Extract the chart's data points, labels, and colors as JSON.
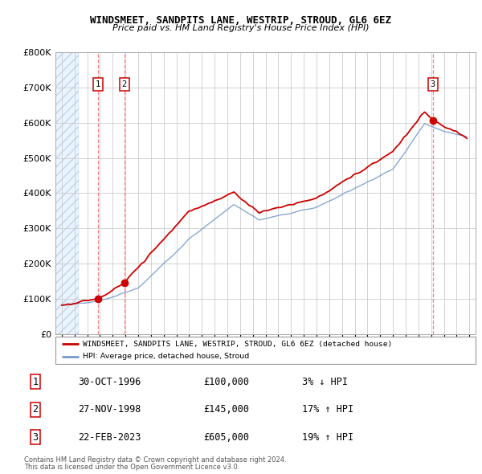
{
  "title": "WINDSMEET, SANDPITS LANE, WESTRIP, STROUD, GL6 6EZ",
  "subtitle": "Price paid vs. HM Land Registry's House Price Index (HPI)",
  "transactions": [
    {
      "num": 1,
      "date": "30-OCT-1996",
      "year": 1996.83,
      "price": 100000,
      "hpi_diff": "3% ↓ HPI"
    },
    {
      "num": 2,
      "date": "27-NOV-1998",
      "year": 1998.9,
      "price": 145000,
      "hpi_diff": "17% ↑ HPI"
    },
    {
      "num": 3,
      "date": "22-FEB-2023",
      "year": 2023.13,
      "price": 605000,
      "hpi_diff": "19% ↑ HPI"
    }
  ],
  "legend_line1": "WINDSMEET, SANDPITS LANE, WESTRIP, STROUD, GL6 6EZ (detached house)",
  "legend_line2": "HPI: Average price, detached house, Stroud",
  "footer1": "Contains HM Land Registry data © Crown copyright and database right 2024.",
  "footer2": "This data is licensed under the Open Government Licence v3.0.",
  "price_color": "#cc0000",
  "hpi_color": "#7799cc",
  "ylim": [
    0,
    800000
  ],
  "xlim": [
    1993.5,
    2026.5
  ],
  "yticks": [
    0,
    100000,
    200000,
    300000,
    400000,
    500000,
    600000,
    700000,
    800000
  ],
  "xtick_start": 1994,
  "xtick_end": 2026,
  "hatch_end": 1995.3,
  "background_hatch_color": "#ddeeff"
}
